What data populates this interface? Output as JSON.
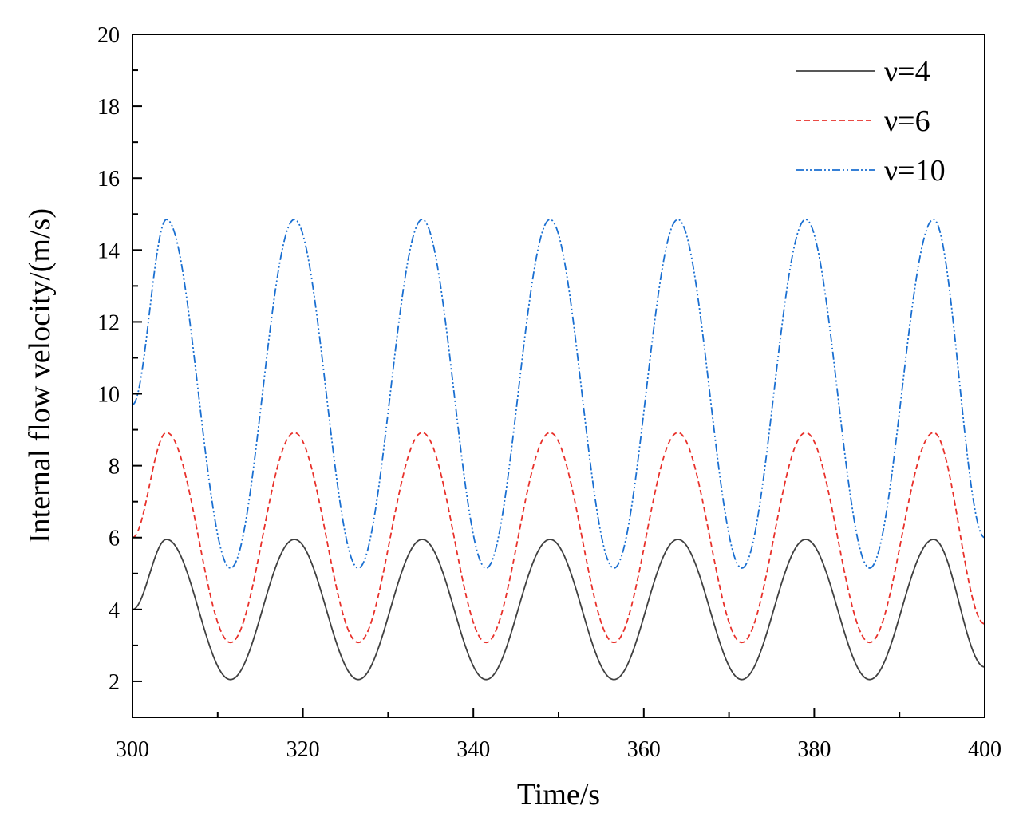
{
  "chart_data": {
    "type": "line",
    "title": "",
    "xlabel": "Time/s",
    "ylabel": "Internal flow velocity/(m/s)",
    "xlim": [
      300,
      400
    ],
    "ylim": [
      1,
      20
    ],
    "xticks": [
      "300",
      "320",
      "340",
      "360",
      "380",
      "400"
    ],
    "yticks": [
      "2",
      "4",
      "6",
      "8",
      "10",
      "12",
      "14",
      "16",
      "18",
      "20"
    ],
    "grid": false,
    "legend_position": "top-right",
    "x": [
      300,
      304,
      311.5,
      319,
      326.5,
      334,
      341.5,
      349,
      356.5,
      364,
      371.5,
      379,
      386.5,
      394,
      400
    ],
    "series": [
      {
        "name": "ν=4",
        "color": "#404040",
        "dash": "solid",
        "values": [
          4.0,
          5.95,
          2.05,
          5.95,
          2.05,
          5.95,
          2.05,
          5.95,
          2.05,
          5.95,
          2.05,
          5.95,
          2.05,
          5.95,
          2.4
        ]
      },
      {
        "name": "ν=6",
        "color": "#e8302a",
        "dash": "dashed",
        "values": [
          6.0,
          8.92,
          3.08,
          8.92,
          3.08,
          8.92,
          3.08,
          8.92,
          3.08,
          8.92,
          3.08,
          8.92,
          3.08,
          8.92,
          3.6
        ]
      },
      {
        "name": "ν=10",
        "color": "#1a6fd1",
        "dash": "dash-dot-dot",
        "values": [
          9.7,
          14.85,
          5.15,
          14.85,
          5.15,
          14.85,
          5.15,
          14.85,
          5.15,
          14.85,
          5.15,
          14.85,
          5.15,
          14.85,
          6.0
        ]
      }
    ]
  }
}
